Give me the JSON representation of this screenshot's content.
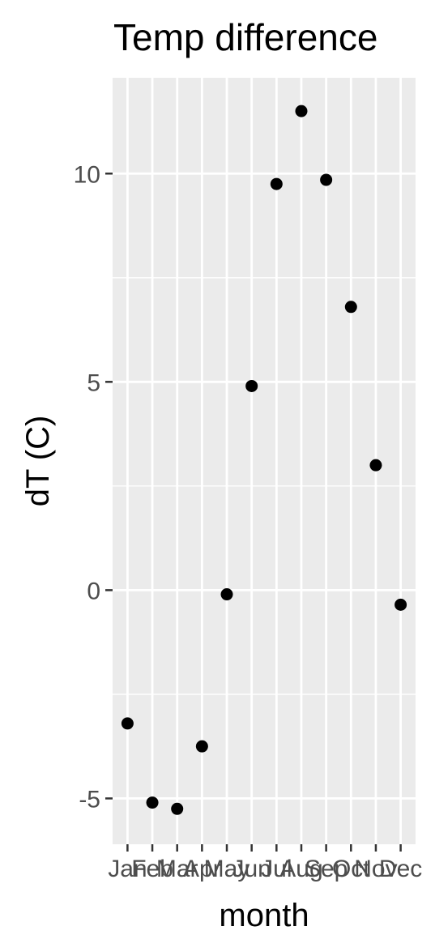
{
  "chart_data": {
    "type": "scatter",
    "title": "Temp difference",
    "xlabel": "month",
    "ylabel": "dT (C)",
    "categories": [
      "Jan",
      "Feb",
      "Mar",
      "Apr",
      "May",
      "Jun",
      "Jul",
      "Aug",
      "Sep",
      "Oct",
      "Nov",
      "Dec"
    ],
    "values": [
      -3.2,
      -5.1,
      -5.25,
      -3.75,
      -0.1,
      4.9,
      9.75,
      11.5,
      9.85,
      6.8,
      3.0,
      -0.35
    ],
    "ylim": [
      -6.1,
      12.3
    ],
    "yticks": [
      -5,
      0,
      5,
      10
    ],
    "ytick_labels": [
      "-5",
      "0",
      "5",
      "10"
    ],
    "grid": true,
    "legend": "none",
    "colors": {
      "panel_background": "#ebebeb",
      "grid_line": "#ffffff",
      "point": "#000000",
      "tick_text": "#4d4d4d",
      "tick_mark": "#333333"
    }
  }
}
